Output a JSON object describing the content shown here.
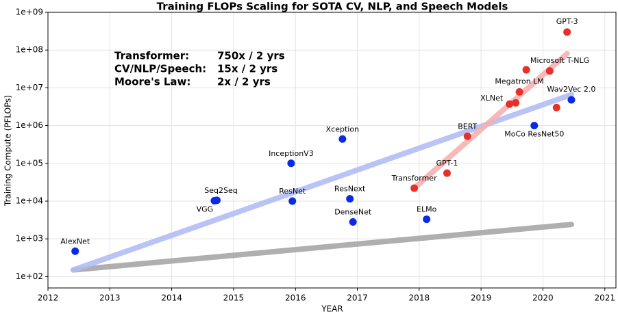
{
  "chart_data": {
    "type": "scatter",
    "title": "Training FLOPs Scaling for SOTA CV, NLP, and Speech Models",
    "x_label": "YEAR",
    "y_label": "Training Compute (PFLOPs)",
    "log_y": true,
    "grid": true,
    "xlim": [
      2012,
      2021.18
    ],
    "ylim": [
      50,
      1000000000
    ],
    "xticks": [
      2012,
      2013,
      2014,
      2015,
      2016,
      2017,
      2018,
      2019,
      2020,
      2021
    ],
    "yticks": [
      {
        "value": 100,
        "label": "1e+02"
      },
      {
        "value": 1000,
        "label": "1e+03"
      },
      {
        "value": 10000,
        "label": "1e+04"
      },
      {
        "value": 100000,
        "label": "1e+05"
      },
      {
        "value": 1000000,
        "label": "1e+06"
      },
      {
        "value": 10000000,
        "label": "1e+07"
      },
      {
        "value": 100000000,
        "label": "1e+08"
      },
      {
        "value": 1000000000,
        "label": "1e+09"
      }
    ],
    "trend_lines": [
      {
        "color": "#a6a6a6",
        "x": [
          2012.41,
          2020.46
        ],
        "y": [
          150,
          2400
        ]
      },
      {
        "color": "#b3bcf5",
        "x": [
          2012.41,
          2020.46
        ],
        "y": [
          150,
          6600000
        ]
      },
      {
        "color": "#f5b0b0",
        "x": [
          2017.92,
          2020.39
        ],
        "y": [
          22000,
          80000000
        ]
      }
    ],
    "groups": [
      {
        "color": "#0a2ae6",
        "x": [
          2012.44,
          2014.69,
          2014.73,
          2015.93,
          2015.95,
          2016.76,
          2016.88,
          2016.93,
          2018.12,
          2019.86,
          2020.46
        ],
        "y": [
          470,
          10200,
          10500,
          100000,
          10000,
          440000,
          11500,
          2800,
          3300,
          1000000,
          4800000
        ],
        "labels": [
          "AlexNet",
          "VGG",
          "Seq2Seq",
          "InceptionV3",
          "ResNet",
          "Xception",
          "ResNext",
          "DenseNet",
          "ELMo",
          "MoCo ResNet50",
          "Wav2Vec 2.0"
        ]
      },
      {
        "color": "#e8302a",
        "x": [
          2017.92,
          2018.45,
          2018.78,
          2019.46,
          2019.56,
          2019.62,
          2019.73,
          2020.11,
          2020.22,
          2020.39
        ],
        "y": [
          22000,
          55000,
          520000,
          3700000,
          4000000,
          7800000,
          30000000,
          28000000,
          3000000,
          300000000
        ],
        "labels": [
          "Transformer",
          "GPT-1",
          "BERT",
          "XLNet",
          null,
          "Megatron LM",
          "Microsoft T-NLG",
          null,
          null,
          "GPT-3"
        ]
      }
    ],
    "annotations": [
      {
        "label": "Transformer:",
        "rate": "750x / 2 yrs",
        "color": "#e8302a"
      },
      {
        "label": "CV/NLP/Speech:",
        "rate": "15x / 2 yrs",
        "color": "#0a2ae6"
      },
      {
        "label": "Moore's Law:",
        "rate": "2x / 2 yrs",
        "color": "#000000"
      }
    ]
  }
}
